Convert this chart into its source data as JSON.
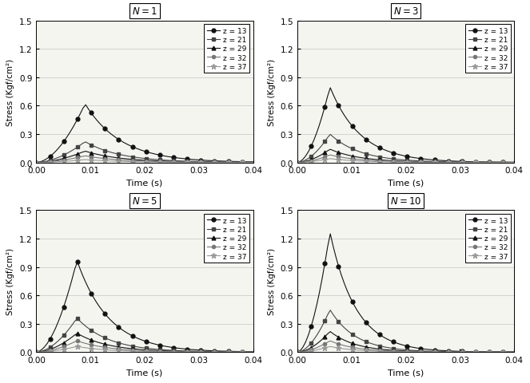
{
  "panels": [
    {
      "N": 1,
      "peaks": [
        0.62,
        0.22,
        0.12,
        0.07,
        0.03
      ],
      "peak_time": 0.009,
      "rise": 1.8,
      "fall": 0.85
    },
    {
      "N": 3,
      "peaks": [
        0.8,
        0.3,
        0.14,
        0.08,
        0.04
      ],
      "peak_time": 0.006,
      "rise": 1.8,
      "fall": 1.1
    },
    {
      "N": 5,
      "peaks": [
        0.97,
        0.36,
        0.2,
        0.12,
        0.06
      ],
      "peak_time": 0.0075,
      "rise": 1.8,
      "fall": 1.0
    },
    {
      "N": 10,
      "peaks": [
        1.27,
        0.45,
        0.22,
        0.12,
        0.06
      ],
      "peak_time": 0.006,
      "rise": 1.8,
      "fall": 1.3
    }
  ],
  "xlim": [
    0.0,
    0.04
  ],
  "ylim": [
    0.0,
    1.5
  ],
  "xticks": [
    0.0,
    0.01,
    0.02,
    0.03,
    0.04
  ],
  "yticks": [
    0.0,
    0.3,
    0.6,
    0.9,
    1.2,
    1.5
  ],
  "xlabel": "Time (s)",
  "ylabel": "Stress (Kgf/cm²)",
  "legend_labels": [
    "z = 13",
    "z = 21",
    "z = 29",
    "z = 32",
    "z = 37"
  ],
  "colors": [
    "#111111",
    "#444444",
    "#111111",
    "#777777",
    "#999999"
  ],
  "markers": [
    "o",
    "s",
    "^",
    "o",
    "*"
  ],
  "markersizes": [
    3.5,
    3.5,
    3.5,
    3.0,
    5.0
  ],
  "linestyles": [
    "-",
    "-",
    "-",
    "-",
    "-"
  ],
  "linewidths": [
    0.8,
    0.8,
    0.8,
    0.8,
    0.8
  ],
  "n_points": 80,
  "marker_every": 5,
  "panel_bg": "#f5f5f0",
  "grid_color": "#cccccc",
  "duration": 0.04
}
